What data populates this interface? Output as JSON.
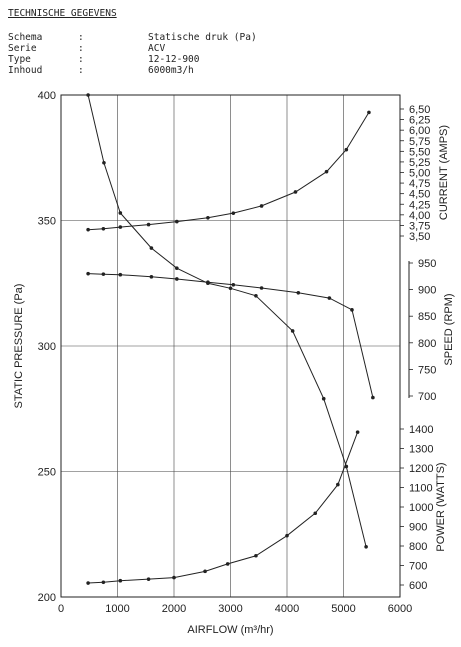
{
  "header": {
    "title": "TECHNISCHE GEGEVENS",
    "rows": [
      {
        "key": "Schema",
        "sep": ":",
        "value": "Statische druk (Pa)"
      },
      {
        "key": "Serie",
        "sep": ":",
        "value": "ACV"
      },
      {
        "key": "Type",
        "sep": ":",
        "value": "12-12-900"
      },
      {
        "key": "Inhoud",
        "sep": ":",
        "value": "6000m3/h"
      }
    ]
  },
  "chart_data": {
    "type": "line",
    "xlabel": "AIRFLOW (m³/hr)",
    "xlim": [
      0,
      6000
    ],
    "x_ticks": [
      "0",
      "1000",
      "2000",
      "3000",
      "4000",
      "5000",
      "6000"
    ],
    "grid": true,
    "axes": {
      "pressure": {
        "label": "STATIC PRESSURE (Pa)",
        "range": [
          200,
          400
        ],
        "ticks": [
          "200",
          "250",
          "300",
          "350",
          "400"
        ]
      },
      "current": {
        "label": "CURRENT (AMPS)",
        "range": [
          3.5,
          6.5
        ],
        "ticks": [
          "3,50",
          "3,75",
          "4,00",
          "4,25",
          "4,50",
          "4,75",
          "5,00",
          "5,25",
          "5,50",
          "5,75",
          "6,00",
          "6,25",
          "6,50"
        ]
      },
      "speed": {
        "label": "SPEED (RPM)",
        "range": [
          700,
          950
        ],
        "ticks": [
          "700",
          "750",
          "800",
          "850",
          "900",
          "950"
        ]
      },
      "power": {
        "label": "POWER (WATTS)",
        "range": [
          600,
          1400
        ],
        "ticks": [
          "600",
          "700",
          "800",
          "900",
          "1000",
          "1100",
          "1200",
          "1300",
          "1400"
        ]
      }
    },
    "series": [
      {
        "axis": "pressure",
        "color": "#222222",
        "points": [
          [
            480,
            400
          ],
          [
            760,
            373
          ],
          [
            1050,
            353
          ],
          [
            1600,
            339
          ],
          [
            2050,
            331
          ],
          [
            2600,
            325
          ],
          [
            3000,
            323
          ],
          [
            3450,
            320
          ],
          [
            4100,
            306
          ],
          [
            4650,
            279
          ],
          [
            5050,
            252
          ],
          [
            5400,
            220
          ]
        ]
      },
      {
        "axis": "speed",
        "color": "#222222",
        "points": [
          [
            480,
            930
          ],
          [
            750,
            929
          ],
          [
            1050,
            928
          ],
          [
            1600,
            924
          ],
          [
            2050,
            920
          ],
          [
            2600,
            914
          ],
          [
            3050,
            909
          ],
          [
            3550,
            903
          ],
          [
            4200,
            894
          ],
          [
            4750,
            884
          ],
          [
            5150,
            862
          ],
          [
            5520,
            697
          ]
        ]
      },
      {
        "axis": "current",
        "color": "#222222",
        "points": [
          [
            480,
            3.65
          ],
          [
            750,
            3.67
          ],
          [
            1050,
            3.71
          ],
          [
            1550,
            3.77
          ],
          [
            2050,
            3.84
          ],
          [
            2600,
            3.93
          ],
          [
            3050,
            4.04
          ],
          [
            3550,
            4.21
          ],
          [
            4150,
            4.54
          ],
          [
            4700,
            5.02
          ],
          [
            5050,
            5.54
          ],
          [
            5450,
            6.42
          ]
        ]
      },
      {
        "axis": "power",
        "color": "#222222",
        "points": [
          [
            480,
            610
          ],
          [
            750,
            614
          ],
          [
            1050,
            622
          ],
          [
            1550,
            630
          ],
          [
            2000,
            638
          ],
          [
            2550,
            670
          ],
          [
            2950,
            708
          ],
          [
            3450,
            750
          ],
          [
            4000,
            853
          ],
          [
            4500,
            968
          ],
          [
            4900,
            1115
          ],
          [
            5250,
            1384
          ]
        ]
      }
    ]
  }
}
